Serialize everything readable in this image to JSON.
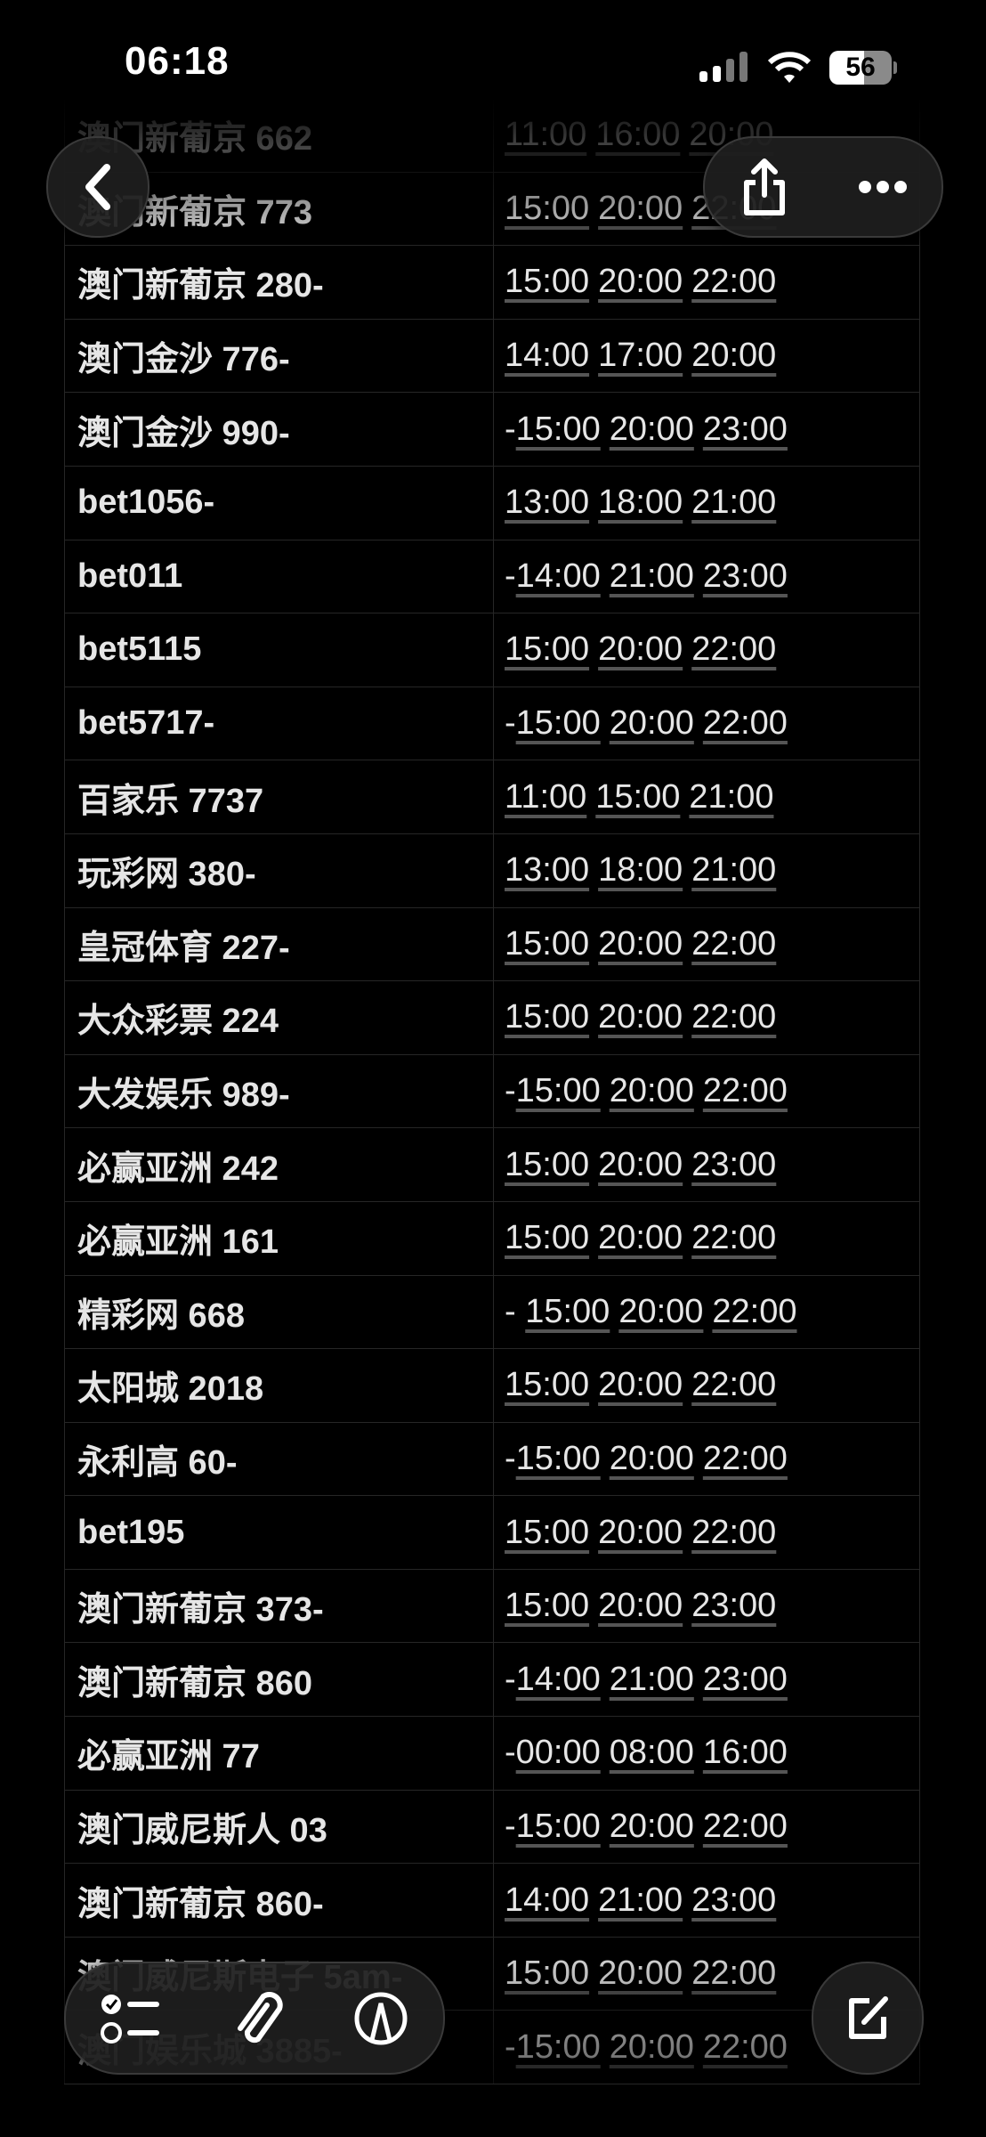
{
  "status_bar": {
    "time": "06:18",
    "battery": "56",
    "icons": [
      "signal-icon",
      "wifi-icon",
      "battery-icon"
    ]
  },
  "nav": {
    "back_icon": "chevron-left-icon",
    "share_icon": "share-icon",
    "more_icon": "ellipsis-icon"
  },
  "toolbar": {
    "icons": [
      "checklist-icon",
      "paperclip-icon",
      "markup-pen-icon",
      "compose-icon"
    ]
  },
  "table": {
    "rows": [
      {
        "name": "澳门新葡京 662",
        "prefix": "",
        "times": [
          "11:00",
          "16:00",
          "20:00"
        ]
      },
      {
        "name": "澳门新葡京 773",
        "prefix": "",
        "times": [
          "15:00",
          "20:00",
          "22:00"
        ]
      },
      {
        "name": "澳门新葡京 280-",
        "prefix": "",
        "times": [
          "15:00",
          "20:00",
          "22:00"
        ]
      },
      {
        "name": "澳门金沙 776-",
        "prefix": "",
        "times": [
          "14:00",
          "17:00",
          "20:00"
        ]
      },
      {
        "name": "澳门金沙 990-",
        "prefix": "-",
        "times": [
          "15:00",
          "20:00",
          "23:00"
        ]
      },
      {
        "name": "bet1056-",
        "prefix": "",
        "times": [
          "13:00",
          "18:00",
          "21:00"
        ]
      },
      {
        "name": "bet011",
        "prefix": "-",
        "times": [
          "14:00",
          "21:00",
          "23:00"
        ]
      },
      {
        "name": "bet5115",
        "prefix": "",
        "times": [
          "15:00",
          "20:00",
          "22:00"
        ]
      },
      {
        "name": "bet5717-",
        "prefix": "-",
        "times": [
          "15:00",
          "20:00",
          "22:00"
        ]
      },
      {
        "name": "百家乐 7737",
        "prefix": "",
        "times": [
          "11:00",
          "15:00",
          "21:00"
        ]
      },
      {
        "name": "玩彩网 380-",
        "prefix": "",
        "times": [
          "13:00",
          "18:00",
          "21:00"
        ]
      },
      {
        "name": "皇冠体育 227-",
        "prefix": "",
        "times": [
          "15:00",
          "20:00",
          "22:00"
        ]
      },
      {
        "name": "大众彩票 224",
        "prefix": "",
        "times": [
          "15:00",
          "20:00",
          "22:00"
        ]
      },
      {
        "name": "大发娱乐 989-",
        "prefix": "-",
        "times": [
          "15:00",
          "20:00",
          "22:00"
        ]
      },
      {
        "name": "必赢亚洲 242",
        "prefix": "",
        "times": [
          "15:00",
          "20:00",
          "23:00"
        ]
      },
      {
        "name": "必赢亚洲 161",
        "prefix": "",
        "times": [
          "15:00",
          "20:00",
          "22:00"
        ]
      },
      {
        "name": "精彩网 668",
        "prefix": "- ",
        "times": [
          "15:00",
          "20:00",
          "22:00"
        ]
      },
      {
        "name": "太阳城 2018",
        "prefix": "",
        "times": [
          "15:00",
          "20:00",
          "22:00"
        ]
      },
      {
        "name": "永利高 60-",
        "prefix": "-",
        "times": [
          "15:00",
          "20:00",
          "22:00"
        ]
      },
      {
        "name": "bet195",
        "prefix": "",
        "times": [
          "15:00",
          "20:00",
          "22:00"
        ]
      },
      {
        "name": "澳门新葡京 373-",
        "prefix": "",
        "times": [
          "15:00",
          "20:00",
          "23:00"
        ]
      },
      {
        "name": "澳门新葡京 860",
        "prefix": "-",
        "times": [
          "14:00",
          "21:00",
          "23:00"
        ]
      },
      {
        "name": "必赢亚洲 77",
        "prefix": "-",
        "times": [
          "00:00",
          "08:00",
          "16:00"
        ]
      },
      {
        "name": "澳门威尼斯人 03",
        "prefix": "-",
        "times": [
          "15:00",
          "20:00",
          "22:00"
        ]
      },
      {
        "name": "澳门新葡京 860-",
        "prefix": "",
        "times": [
          "14:00",
          "21:00",
          "23:00"
        ]
      },
      {
        "name": "澳门威尼斯电子 5am-",
        "prefix": "",
        "times": [
          "15:00",
          "20:00",
          "22:00"
        ]
      },
      {
        "name": "澳门娱乐城 3885-",
        "prefix": "-",
        "times": [
          "15:00",
          "20:00",
          "22:00"
        ]
      }
    ]
  }
}
